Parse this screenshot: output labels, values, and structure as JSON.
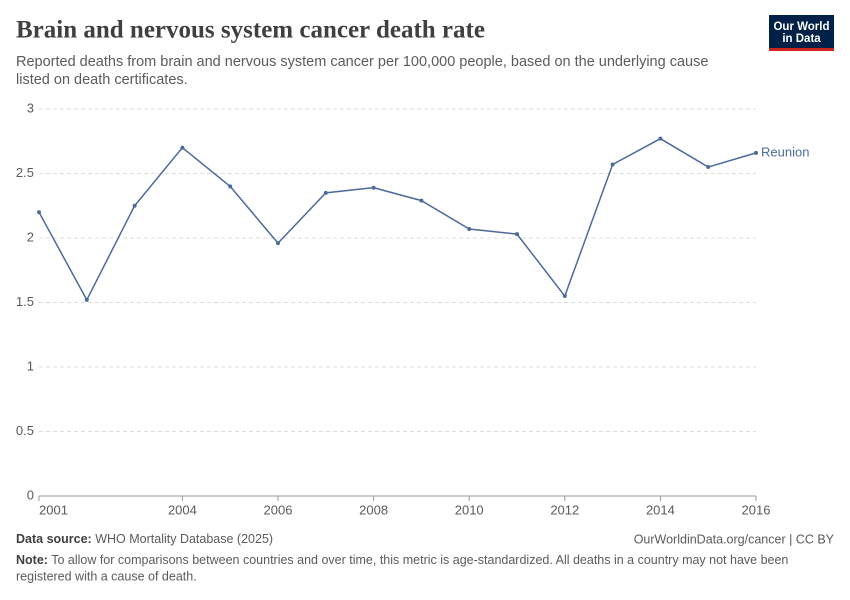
{
  "chart_data": {
    "type": "line",
    "title": "Brain and nervous system cancer death rate",
    "subtitle": [
      "Reported deaths from brain and nervous system cancer per 100,000 people, based on the underlying cause",
      "listed on death certificates."
    ],
    "x": [
      2001,
      2002,
      2003,
      2004,
      2005,
      2006,
      2007,
      2008,
      2009,
      2010,
      2011,
      2012,
      2013,
      2014,
      2015,
      2016
    ],
    "series": [
      {
        "name": "Reunion",
        "color": "#4c6a9c",
        "values": [
          2.2,
          1.52,
          2.25,
          2.7,
          2.4,
          1.96,
          2.35,
          2.39,
          2.29,
          2.07,
          2.03,
          1.55,
          2.57,
          2.77,
          2.55,
          2.66
        ]
      }
    ],
    "xlim": [
      2001,
      2016
    ],
    "xticks": [
      2001,
      2004,
      2006,
      2008,
      2010,
      2012,
      2014,
      2016
    ],
    "ylim": [
      0,
      3
    ],
    "yticks": [
      0,
      0.5,
      1,
      1.5,
      2,
      2.5,
      3
    ],
    "grid": true,
    "logo": [
      "Our World",
      "in Data"
    ],
    "source_label": "Data source:",
    "source": "WHO Mortality Database (2025)",
    "url": "OurWorldinData.org/cancer | CC BY",
    "note_label": "Note:",
    "note": [
      " To allow for comparisons between countries and over time, this metric is age-standardized. All deaths in a country may not have been",
      "registered with a cause of death."
    ]
  }
}
